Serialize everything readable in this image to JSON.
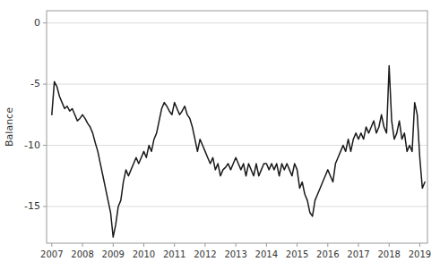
{
  "chart_data": {
    "type": "line",
    "ylabel": "Balance",
    "color": "#1a1a1a",
    "xlim": [
      2006.83,
      2019.25
    ],
    "ylim": [
      -18,
      1
    ],
    "xticks": [
      2007,
      2008,
      2009,
      2010,
      2011,
      2012,
      2013,
      2014,
      2015,
      2016,
      2017,
      2018,
      2019
    ],
    "yticks": [
      0,
      -5,
      -10,
      -15
    ],
    "grid": true,
    "x": [
      2007.0,
      2007.083,
      2007.167,
      2007.25,
      2007.333,
      2007.417,
      2007.5,
      2007.583,
      2007.667,
      2007.75,
      2007.833,
      2007.917,
      2008.0,
      2008.083,
      2008.167,
      2008.25,
      2008.333,
      2008.417,
      2008.5,
      2008.583,
      2008.667,
      2008.75,
      2008.833,
      2008.917,
      2009.0,
      2009.083,
      2009.167,
      2009.25,
      2009.333,
      2009.417,
      2009.5,
      2009.583,
      2009.667,
      2009.75,
      2009.833,
      2009.917,
      2010.0,
      2010.083,
      2010.167,
      2010.25,
      2010.333,
      2010.417,
      2010.5,
      2010.583,
      2010.667,
      2010.75,
      2010.833,
      2010.917,
      2011.0,
      2011.083,
      2011.167,
      2011.25,
      2011.333,
      2011.417,
      2011.5,
      2011.583,
      2011.667,
      2011.75,
      2011.833,
      2011.917,
      2012.0,
      2012.083,
      2012.167,
      2012.25,
      2012.333,
      2012.417,
      2012.5,
      2012.583,
      2012.667,
      2012.75,
      2012.833,
      2012.917,
      2013.0,
      2013.083,
      2013.167,
      2013.25,
      2013.333,
      2013.417,
      2013.5,
      2013.583,
      2013.667,
      2013.75,
      2013.833,
      2013.917,
      2014.0,
      2014.083,
      2014.167,
      2014.25,
      2014.333,
      2014.417,
      2014.5,
      2014.583,
      2014.667,
      2014.75,
      2014.833,
      2014.917,
      2015.0,
      2015.083,
      2015.167,
      2015.25,
      2015.333,
      2015.417,
      2015.5,
      2015.583,
      2015.667,
      2015.75,
      2015.833,
      2015.917,
      2016.0,
      2016.083,
      2016.167,
      2016.25,
      2016.333,
      2016.417,
      2016.5,
      2016.583,
      2016.667,
      2016.75,
      2016.833,
      2016.917,
      2017.0,
      2017.083,
      2017.167,
      2017.25,
      2017.333,
      2017.417,
      2017.5,
      2017.583,
      2017.667,
      2017.75,
      2017.833,
      2017.917,
      2018.0,
      2018.083,
      2018.167,
      2018.25,
      2018.333,
      2018.417,
      2018.5,
      2018.583,
      2018.667,
      2018.75,
      2018.833,
      2018.917,
      2019.0,
      2019.083,
      2019.167
    ],
    "values": [
      -7.5,
      -4.8,
      -5.2,
      -6.0,
      -6.5,
      -7.0,
      -6.8,
      -7.2,
      -7.0,
      -7.5,
      -8.0,
      -7.8,
      -7.5,
      -7.8,
      -8.2,
      -8.5,
      -9.0,
      -9.8,
      -10.5,
      -11.5,
      -12.5,
      -13.5,
      -14.5,
      -15.5,
      -17.5,
      -16.5,
      -15.0,
      -14.5,
      -13.0,
      -12.0,
      -12.5,
      -12.0,
      -11.5,
      -11.0,
      -11.5,
      -11.0,
      -10.5,
      -11.0,
      -10.0,
      -10.5,
      -9.5,
      -9.0,
      -8.0,
      -7.0,
      -6.5,
      -6.8,
      -7.2,
      -7.5,
      -6.5,
      -7.0,
      -7.5,
      -7.2,
      -6.8,
      -7.5,
      -7.8,
      -8.5,
      -9.5,
      -10.5,
      -9.5,
      -10.0,
      -10.5,
      -11.0,
      -11.5,
      -11.0,
      -12.0,
      -11.5,
      -12.5,
      -12.0,
      -11.8,
      -11.5,
      -12.0,
      -11.5,
      -11.0,
      -11.5,
      -12.0,
      -11.5,
      -12.5,
      -11.5,
      -12.0,
      -12.5,
      -11.5,
      -12.5,
      -12.0,
      -11.5,
      -11.5,
      -12.0,
      -11.5,
      -12.0,
      -11.5,
      -12.5,
      -11.5,
      -12.0,
      -11.5,
      -12.0,
      -12.5,
      -11.5,
      -12.0,
      -13.5,
      -13.0,
      -14.0,
      -14.5,
      -15.5,
      -15.8,
      -14.5,
      -14.0,
      -13.5,
      -13.0,
      -12.5,
      -12.0,
      -12.5,
      -13.0,
      -11.5,
      -11.0,
      -10.5,
      -10.0,
      -10.5,
      -9.5,
      -10.5,
      -9.5,
      -9.0,
      -9.5,
      -9.0,
      -9.5,
      -8.5,
      -9.0,
      -8.5,
      -8.0,
      -9.0,
      -8.5,
      -7.5,
      -8.5,
      -9.0,
      -3.5,
      -8.0,
      -9.5,
      -9.0,
      -8.0,
      -9.5,
      -9.0,
      -10.5,
      -10.0,
      -10.5,
      -6.5,
      -7.5,
      -11.0,
      -13.5,
      -13.0
    ]
  }
}
